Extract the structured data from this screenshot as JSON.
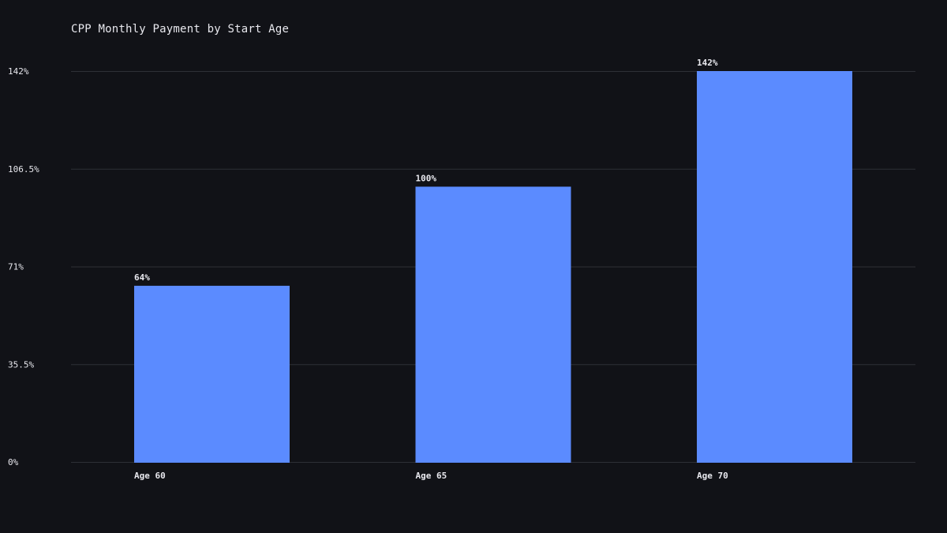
{
  "chart_data": {
    "type": "bar",
    "title": "CPP Monthly Payment by Start Age",
    "xlabel": "",
    "ylabel": "",
    "categories": [
      "Age 60",
      "Age 65",
      "Age 70"
    ],
    "values": [
      64,
      100,
      142
    ],
    "data_labels": [
      "64%",
      "100%",
      "142%"
    ],
    "ylim": [
      0,
      142
    ],
    "y_ticks": [
      0,
      35.5,
      71,
      106.5,
      142
    ],
    "y_tick_labels": [
      "0%",
      "35.5%",
      "71%",
      "106.5%",
      "142%"
    ],
    "grid": true,
    "legend": "none",
    "colors": {
      "background": "#111217",
      "bar": "#5b8bff",
      "grid": "#2e3036",
      "text": "#e8e8ee"
    }
  }
}
